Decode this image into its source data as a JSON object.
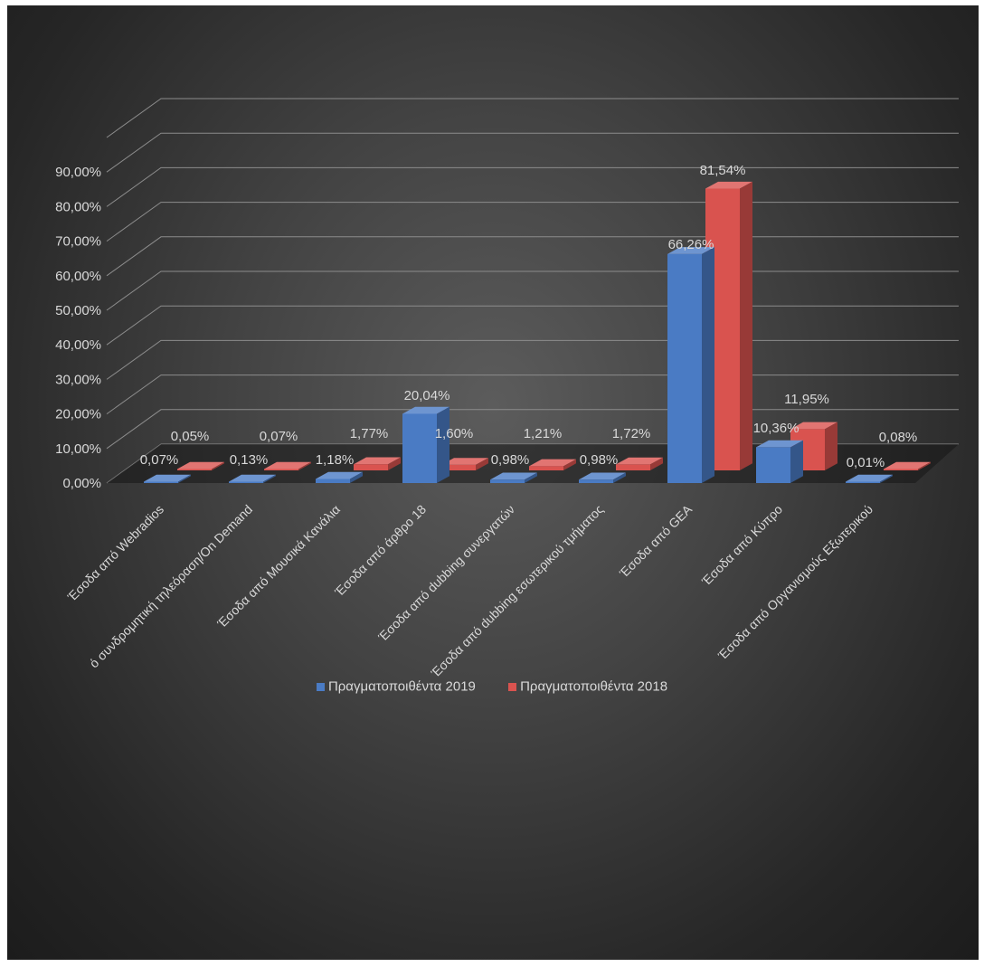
{
  "chart_data": {
    "type": "bar",
    "style": "3d-clustered-column",
    "categories": [
      "Έσοδα από Webradios",
      "ό συνδρομητική τηλεόραση/On Demand",
      "Έσοδα από Μουσικά Κανάλια",
      "Έσοδα από άρθρο 18",
      "Έσοδα από dubbing συνεργατών",
      "Έσοδα από dubbing εσωτερικού τμήματος",
      "Έσοδα από GEA",
      "Έσοδα από Κύπρο",
      "Έσοδα από Οργανισμούς Εξωτερικού"
    ],
    "series": [
      {
        "name": "Πραγματοποιθέντα 2019",
        "color": "#4a7bc4",
        "values": [
          0.07,
          0.13,
          1.18,
          20.04,
          0.98,
          0.98,
          66.26,
          10.36,
          0.01
        ],
        "labels": [
          "0,07%",
          "0,13%",
          "1,18%",
          "20,04%",
          "0,98%",
          "0,98%",
          "66,26%",
          "10,36%",
          "0,01%"
        ]
      },
      {
        "name": "Πραγματοποιθέντα 2018",
        "color": "#d9534f",
        "values": [
          0.05,
          0.07,
          1.77,
          1.6,
          1.21,
          1.72,
          81.54,
          11.95,
          0.08
        ],
        "labels": [
          "0,05%",
          "0,07%",
          "1,77%",
          "1,60%",
          "1,21%",
          "1,72%",
          "81,54%",
          "11,95%",
          "0,08%"
        ]
      }
    ],
    "y_ticks": [
      "0,00%",
      "10,00%",
      "20,00%",
      "30,00%",
      "40,00%",
      "50,00%",
      "60,00%",
      "70,00%",
      "80,00%",
      "90,00%"
    ],
    "ylim": [
      0,
      100
    ],
    "grid": true,
    "legend_position": "bottom"
  }
}
